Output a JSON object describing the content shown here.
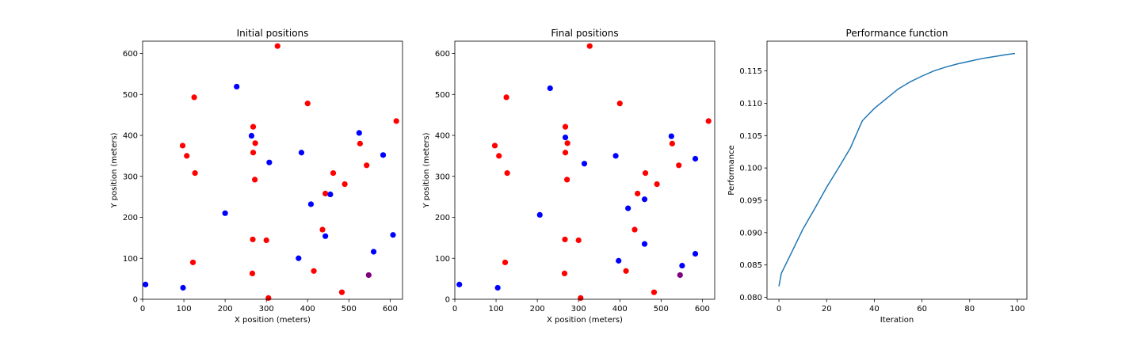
{
  "colors": {
    "red": "#ff0000",
    "blue": "#0000ff",
    "overlap": "#800080",
    "line": "#1f77b4"
  },
  "chart_data": [
    {
      "type": "scatter",
      "title": "Initial positions",
      "xlabel": "X position (meters)",
      "ylabel": "Y position (meters)",
      "xlim": [
        0,
        630
      ],
      "ylim": [
        0,
        630
      ],
      "xticks": [
        0,
        100,
        200,
        300,
        400,
        500,
        600
      ],
      "yticks": [
        0,
        100,
        200,
        300,
        400,
        500,
        600
      ],
      "grid": false,
      "series": [
        {
          "color": "red",
          "points": [
            [
              327,
              618
            ],
            [
              125,
              493
            ],
            [
              400,
              478
            ],
            [
              615,
              435
            ],
            [
              268,
              421
            ],
            [
              97,
              375
            ],
            [
              273,
              381
            ],
            [
              527,
              380
            ],
            [
              107,
              350
            ],
            [
              268,
              358
            ],
            [
              543,
              327
            ],
            [
              127,
              308
            ],
            [
              462,
              308
            ],
            [
              272,
              292
            ],
            [
              490,
              281
            ],
            [
              443,
              258
            ],
            [
              267,
              146
            ],
            [
              300,
              144
            ],
            [
              436,
              170
            ],
            [
              122,
              90
            ],
            [
              266,
              63
            ],
            [
              415,
              69
            ],
            [
              305,
              3
            ],
            [
              483,
              17
            ]
          ]
        },
        {
          "color": "blue",
          "points": [
            [
              228,
              519
            ],
            [
              264,
              399
            ],
            [
              525,
              406
            ],
            [
              385,
              358
            ],
            [
              583,
              352
            ],
            [
              307,
              334
            ],
            [
              455,
              256
            ],
            [
              408,
              232
            ],
            [
              200,
              210
            ],
            [
              443,
              154
            ],
            [
              607,
              157
            ],
            [
              560,
              116
            ],
            [
              378,
              100
            ],
            [
              7,
              36
            ],
            [
              98,
              28
            ]
          ]
        },
        {
          "color": "overlap",
          "points": [
            [
              548,
              59
            ]
          ]
        }
      ]
    },
    {
      "type": "scatter",
      "title": "Final positions",
      "xlabel": "X position (meters)",
      "ylabel": "Y position (meters)",
      "xlim": [
        0,
        630
      ],
      "ylim": [
        0,
        630
      ],
      "xticks": [
        0,
        100,
        200,
        300,
        400,
        500,
        600
      ],
      "yticks": [
        0,
        100,
        200,
        300,
        400,
        500,
        600
      ],
      "grid": false,
      "series": [
        {
          "color": "red",
          "points": [
            [
              327,
              618
            ],
            [
              125,
              493
            ],
            [
              400,
              478
            ],
            [
              615,
              435
            ],
            [
              268,
              421
            ],
            [
              97,
              375
            ],
            [
              273,
              381
            ],
            [
              527,
              380
            ],
            [
              107,
              350
            ],
            [
              268,
              358
            ],
            [
              543,
              327
            ],
            [
              127,
              308
            ],
            [
              462,
              308
            ],
            [
              272,
              292
            ],
            [
              490,
              281
            ],
            [
              443,
              258
            ],
            [
              267,
              146
            ],
            [
              300,
              144
            ],
            [
              436,
              170
            ],
            [
              122,
              90
            ],
            [
              266,
              63
            ],
            [
              415,
              69
            ],
            [
              305,
              3
            ],
            [
              483,
              17
            ]
          ]
        },
        {
          "color": "blue",
          "points": [
            [
              231,
              515
            ],
            [
              268,
              395
            ],
            [
              525,
              398
            ],
            [
              390,
              350
            ],
            [
              583,
              343
            ],
            [
              314,
              331
            ],
            [
              460,
              244
            ],
            [
              420,
              222
            ],
            [
              206,
              206
            ],
            [
              460,
              135
            ],
            [
              551,
              82
            ],
            [
              583,
              111
            ],
            [
              397,
              94
            ],
            [
              11,
              36
            ],
            [
              104,
              28
            ]
          ]
        },
        {
          "color": "overlap",
          "points": [
            [
              546,
              59
            ]
          ]
        }
      ]
    },
    {
      "type": "line",
      "title": "Performance function",
      "xlabel": "Iteration",
      "ylabel": "Performance",
      "xlim": [
        -5,
        104
      ],
      "ylim": [
        0.0797,
        0.1196
      ],
      "xticks": [
        0,
        20,
        40,
        60,
        80,
        100
      ],
      "yticks": [
        0.08,
        0.085,
        0.09,
        0.095,
        0.1,
        0.105,
        0.11,
        0.115
      ],
      "ytick_labels": [
        "0.080",
        "0.085",
        "0.090",
        "0.095",
        "0.100",
        "0.105",
        "0.110",
        "0.115"
      ],
      "grid": false,
      "series": [
        {
          "color": "line",
          "x": [
            0,
            1,
            5,
            10,
            15,
            20,
            25,
            30,
            34,
            35,
            40,
            45,
            50,
            55,
            60,
            65,
            70,
            75,
            80,
            85,
            90,
            95,
            99
          ],
          "values": [
            0.0817,
            0.0837,
            0.0867,
            0.0905,
            0.0937,
            0.097,
            0.1,
            0.1031,
            0.1065,
            0.1073,
            0.1092,
            0.1107,
            0.1122,
            0.1133,
            0.1142,
            0.115,
            0.1156,
            0.1161,
            0.1165,
            0.1169,
            0.1172,
            0.1175,
            0.1177
          ]
        }
      ]
    }
  ]
}
